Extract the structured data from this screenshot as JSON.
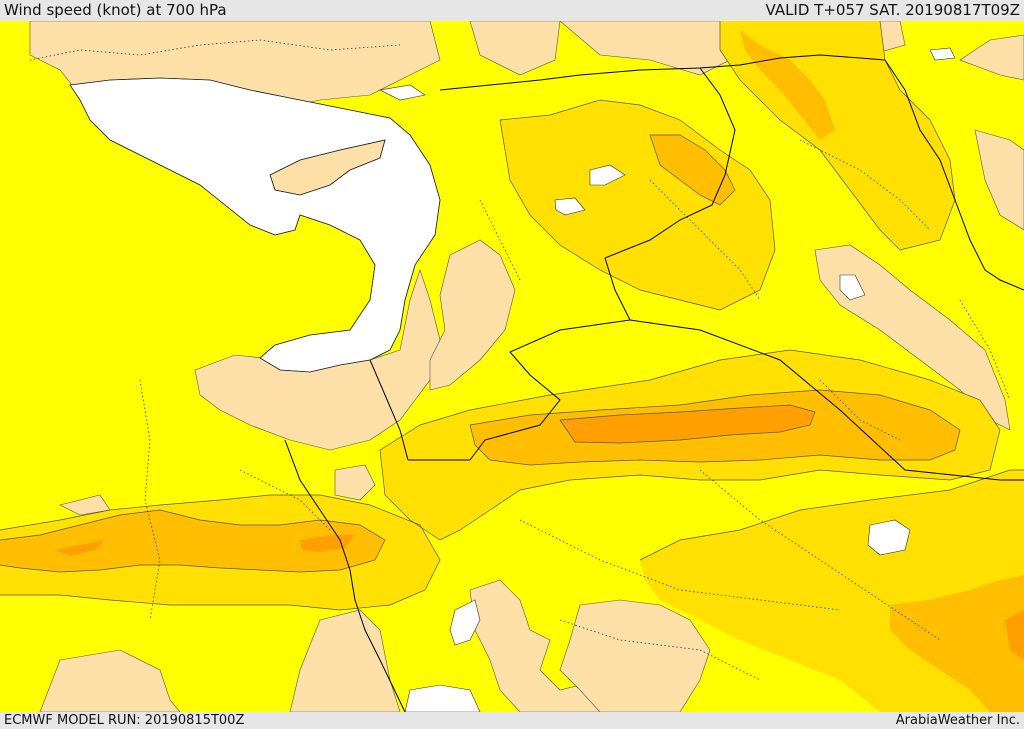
{
  "header": {
    "title": "Wind speed (knot) at 700 hPa",
    "valid": "VALID T+057 SAT. 20190817T09Z"
  },
  "footer": {
    "model_run": "ECMWF MODEL RUN: 20190815T00Z",
    "credit": "ArabiaWeather Inc."
  },
  "map": {
    "variable": "wind speed",
    "level": "700 hPa",
    "units": "knot",
    "colors": {
      "sea_no_data": "#ffffff",
      "light": "#fde0a8",
      "base": "#ffff00",
      "medium": "#ffe000",
      "strong": "#ffbf00",
      "stronger": "#ffa000",
      "strongest": "#ff8000",
      "contour": "#555555",
      "border": "#000000"
    }
  }
}
